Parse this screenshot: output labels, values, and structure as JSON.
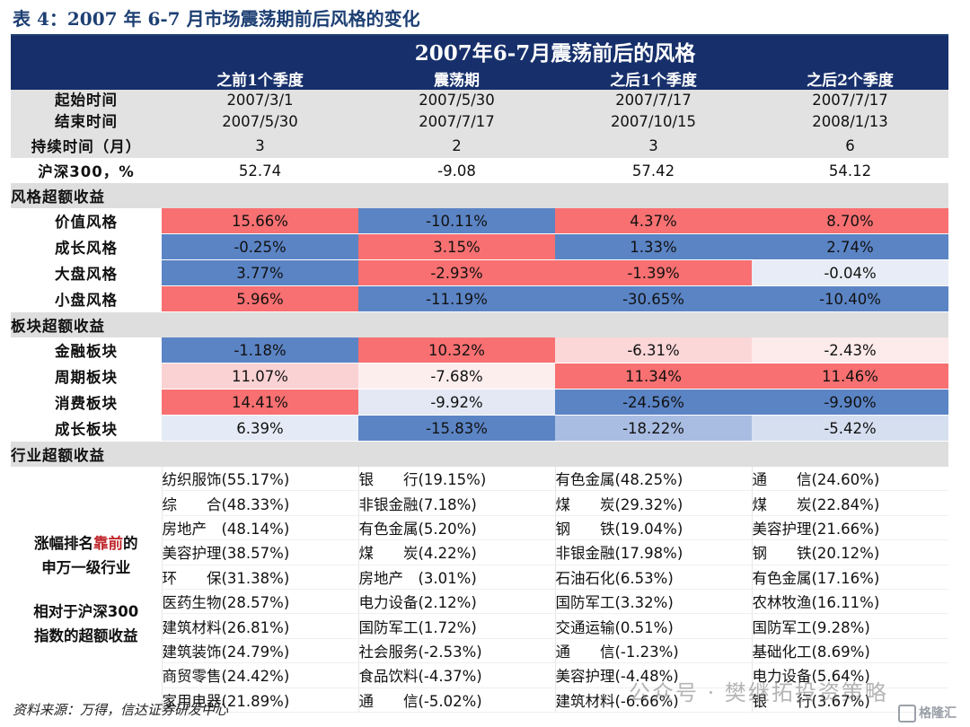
{
  "caption": "表 4：2007 年 6-7 月市场震荡期前后风格的变化",
  "table": {
    "title": "2007年6-7月震荡前后的风格",
    "columns": [
      "之前1个季度",
      "震荡期",
      "之后1个季度",
      "之后2个季度"
    ],
    "start_label": "起始时间",
    "end_label": "结束时间",
    "start": [
      "2007/3/1",
      "2007/5/30",
      "2007/7/17",
      "2007/7/17"
    ],
    "end": [
      "2007/5/30",
      "2007/7/17",
      "2007/10/15",
      "2008/1/13"
    ],
    "duration_label": "持续时间（月）",
    "duration": [
      "3",
      "2",
      "3",
      "6"
    ],
    "hs300_label": "沪深300，%",
    "hs300": [
      "52.74",
      "-9.08",
      "57.42",
      "54.12"
    ],
    "style_section": "风格超额收益",
    "styles": [
      {
        "label": "价值风格",
        "values": [
          "15.66%",
          "-10.11%",
          "4.37%",
          "8.70%"
        ],
        "colors": [
          "#f87071",
          "#5b84c5",
          "#f87071",
          "#f87071"
        ]
      },
      {
        "label": "成长风格",
        "values": [
          "-0.25%",
          "3.15%",
          "1.33%",
          "2.74%"
        ],
        "colors": [
          "#5b84c5",
          "#f87071",
          "#5b84c5",
          "#5b84c5"
        ]
      },
      {
        "label": "大盘风格",
        "values": [
          "3.77%",
          "-2.93%",
          "-1.39%",
          "-0.04%"
        ],
        "colors": [
          "#5b84c5",
          "#f87071",
          "#f87071",
          "#e8ecf6"
        ]
      },
      {
        "label": "小盘风格",
        "values": [
          "5.96%",
          "-11.19%",
          "-30.65%",
          "-10.40%"
        ],
        "colors": [
          "#f87071",
          "#5b84c5",
          "#5b84c5",
          "#5b84c5"
        ]
      }
    ],
    "sector_section": "板块超额收益",
    "sectors": [
      {
        "label": "金融板块",
        "values": [
          "-1.18%",
          "10.32%",
          "-6.31%",
          "-2.43%"
        ],
        "colors": [
          "#5b84c5",
          "#f87071",
          "#fbd7d8",
          "#fdeaea"
        ]
      },
      {
        "label": "周期板块",
        "values": [
          "11.07%",
          "-7.68%",
          "11.34%",
          "11.46%"
        ],
        "colors": [
          "#fbd2d3",
          "#fdeeee",
          "#f87071",
          "#f87071"
        ]
      },
      {
        "label": "消费板块",
        "values": [
          "14.41%",
          "-9.92%",
          "-24.56%",
          "-9.90%"
        ],
        "colors": [
          "#f87071",
          "#e3e8f4",
          "#5b84c5",
          "#5b84c5"
        ]
      },
      {
        "label": "成长板块",
        "values": [
          "6.39%",
          "-15.83%",
          "-18.22%",
          "-5.42%"
        ],
        "colors": [
          "#e5ebf6",
          "#5b84c5",
          "#a9bde2",
          "#d6dff0"
        ]
      }
    ],
    "industry_section": "行业超额收益",
    "industry_label_line1a": "涨幅排名",
    "industry_label_line1b": "靠前",
    "industry_label_line1c": "的",
    "industry_label_line2": "申万一级行业",
    "industry_label_line3": "相对于沪深300",
    "industry_label_line4": "指数的超额收益",
    "industries": [
      [
        "纺织服饰(55.17%)",
        "银　　行(19.15%)",
        "有色金属(48.25%)",
        "通　　信(24.60%)"
      ],
      [
        "综　　合(48.33%)",
        "非银金融(7.18%)",
        "煤　　炭(29.32%)",
        "煤　　炭(22.84%)"
      ],
      [
        "房地产　(48.14%)",
        "有色金属(5.20%)",
        "钢　　铁(19.04%)",
        "美容护理(21.66%)"
      ],
      [
        "美容护理(38.57%)",
        "煤　　炭(4.22%)",
        "非银金融(17.98%)",
        "钢　　铁(20.12%)"
      ],
      [
        "环　　保(31.38%)",
        "房地产　(3.01%)",
        "石油石化(6.53%)",
        "有色金属(17.16%)"
      ],
      [
        "医药生物(28.57%)",
        "电力设备(2.12%)",
        "国防军工(3.32%)",
        "农林牧渔(16.11%)"
      ],
      [
        "建筑材料(26.81%)",
        "国防军工(1.72%)",
        "交通运输(0.51%)",
        "国防军工(9.28%)"
      ],
      [
        "建筑装饰(24.79%)",
        "社会服务(-2.53%)",
        "通　　信(-1.23%)",
        "基础化工(8.69%)"
      ],
      [
        "商贸零售(24.42%)",
        "食品饮料(-4.37%)",
        "美容护理(-4.48%)",
        "电力设备(5.64%)"
      ],
      [
        "家用电器(21.89%)",
        "通　　信(-5.02%)",
        "建筑材料(-6.66%)",
        "银　　行(3.67%)"
      ]
    ]
  },
  "source": "资料来源：万得，信达证券研发中心",
  "watermark": "公众号 · 樊继拓投资策略",
  "logo_text": "格隆汇"
}
